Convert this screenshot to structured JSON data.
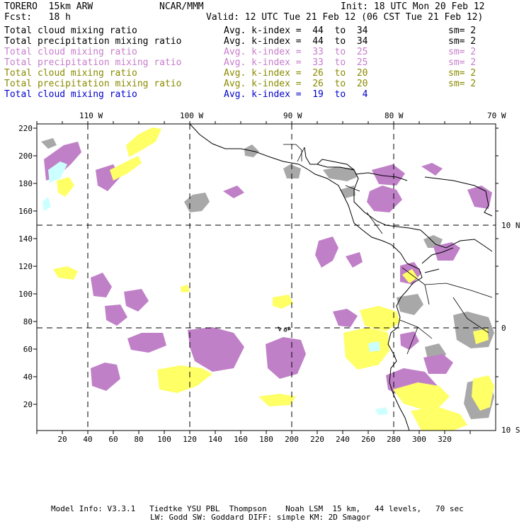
{
  "header": {
    "model": "TORERO  15km ARW",
    "org": "NCAR/MMM",
    "init": "Init: 18 UTC Mon 20 Feb 12",
    "fcst": "Fcst:   18 h",
    "valid": "Valid: 12 UTC Tue 21 Feb 12 (06 CST Tue 21 Feb 12)"
  },
  "legend": [
    {
      "field": "Total cloud mixing ratio",
      "kindex": "Avg. k-index =  44  to  34",
      "sm": "sm= 2",
      "color": "#000000"
    },
    {
      "field": "Total precipitation mixing ratio",
      "kindex": "Avg. k-index =  44  to  34",
      "sm": "sm= 2",
      "color": "#000000"
    },
    {
      "field": "Total cloud mixing ratio",
      "kindex": "Avg. k-index =  33  to  25",
      "sm": "sm= 2",
      "color": "#c77dcc"
    },
    {
      "field": "Total precipitation mixing ratio",
      "kindex": "Avg. k-index =  33  to  25",
      "sm": "sm= 2",
      "color": "#c77dcc"
    },
    {
      "field": "Total cloud mixing ratio",
      "kindex": "Avg. k-index =  26  to  20",
      "sm": "sm= 2",
      "color": "#8a8a00"
    },
    {
      "field": "Total precipitation mixing ratio",
      "kindex": "Avg. k-index =  26  to  20",
      "sm": "sm= 2",
      "color": "#8a8a00"
    },
    {
      "field": "Total cloud mixing ratio",
      "kindex": "Avg. k-index =  19  to   4",
      "sm": "",
      "color": "#0000cc"
    }
  ],
  "map": {
    "lon_labels": [
      "110 W",
      "100 W",
      "90 W",
      "80 W",
      "70 W"
    ],
    "lat_labels": [
      "10 N",
      "0",
      "10 S"
    ],
    "y_ticks": [
      "220",
      "200",
      "180",
      "160",
      "140",
      "120",
      "100",
      "80",
      "60",
      "40",
      "20"
    ],
    "x_ticks": [
      "20",
      "40",
      "60",
      "80",
      "100",
      "120",
      "140",
      "160",
      "180",
      "200",
      "220",
      "240",
      "260",
      "280",
      "300",
      "320"
    ],
    "colors": {
      "gray": "#a8a8a8",
      "purple": "#c080c8",
      "yellow": "#ffff66",
      "cyan": "#ccffff",
      "lines": "#000000"
    }
  },
  "footer": {
    "line1": "Model Info: V3.3.1   Tiedtke YSU PBL  Thompson    Noah LSM  15 km,   44 levels,   70 sec",
    "line2": "LW: Godd SW: Goddard DIFF: simple KM: 2D Smagor"
  }
}
